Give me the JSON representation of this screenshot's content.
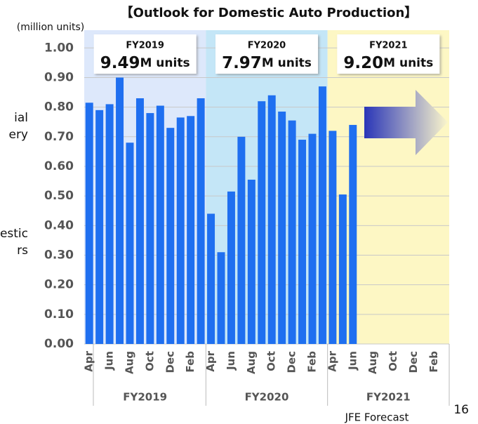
{
  "chart_data": {
    "type": "bar",
    "title": "【Outlook for Domestic Auto Production】",
    "y_label": "(million units)",
    "categories": [
      "Apr",
      null,
      "Jun",
      null,
      "Aug",
      null,
      "Oct",
      null,
      "Dec",
      null,
      "Feb",
      null,
      "Apr",
      null,
      "Jun",
      null,
      "Aug",
      null,
      "Oct",
      null,
      "Dec",
      null,
      "Feb",
      null,
      "Apr",
      null,
      "Jun",
      null,
      "Aug",
      null,
      "Oct",
      null,
      "Dec",
      null,
      "Feb",
      null
    ],
    "values": [
      0.815,
      0.79,
      0.81,
      0.9,
      0.68,
      0.83,
      0.78,
      0.805,
      0.73,
      0.765,
      0.77,
      0.83,
      0.44,
      0.31,
      0.515,
      0.7,
      0.555,
      0.82,
      0.84,
      0.785,
      0.755,
      0.69,
      0.71,
      0.87,
      0.72,
      0.505,
      0.74,
      null,
      null,
      null,
      null,
      null,
      null,
      null,
      null,
      null
    ],
    "color": "#1f6ff0",
    "ylim": [
      0,
      1.06
    ],
    "yticks": [
      {
        "value": 0,
        "label": "0.00"
      },
      {
        "value": 0.1,
        "label": "0.10"
      },
      {
        "value": 0.2,
        "label": "0.20"
      },
      {
        "value": 0.3,
        "label": "0.30"
      },
      {
        "value": 0.4,
        "label": "0.40"
      },
      {
        "value": 0.5,
        "label": "0.50"
      },
      {
        "value": 0.6,
        "label": "0.60"
      },
      {
        "value": 0.7,
        "label": "0.70"
      },
      {
        "value": 0.8,
        "label": "0.80"
      },
      {
        "value": 0.9,
        "label": "0.90"
      },
      {
        "value": 1.0,
        "label": "1.00"
      }
    ],
    "grid": true,
    "fiscal_years": [
      {
        "label": "FY2019",
        "total": "9.49",
        "unit": "M units",
        "color": "#dde8fb"
      },
      {
        "label": "FY2020",
        "total": "7.97",
        "unit": "M units",
        "color": "#c4e6f7"
      },
      {
        "label": "FY2021",
        "total": "9.20",
        "unit": "M units",
        "color": "#fdf7c4"
      }
    ],
    "source": "JFE Forecast"
  },
  "page_number": "16",
  "cropped_side_text": [
    "ial",
    "ery",
    "estic",
    "rs"
  ]
}
